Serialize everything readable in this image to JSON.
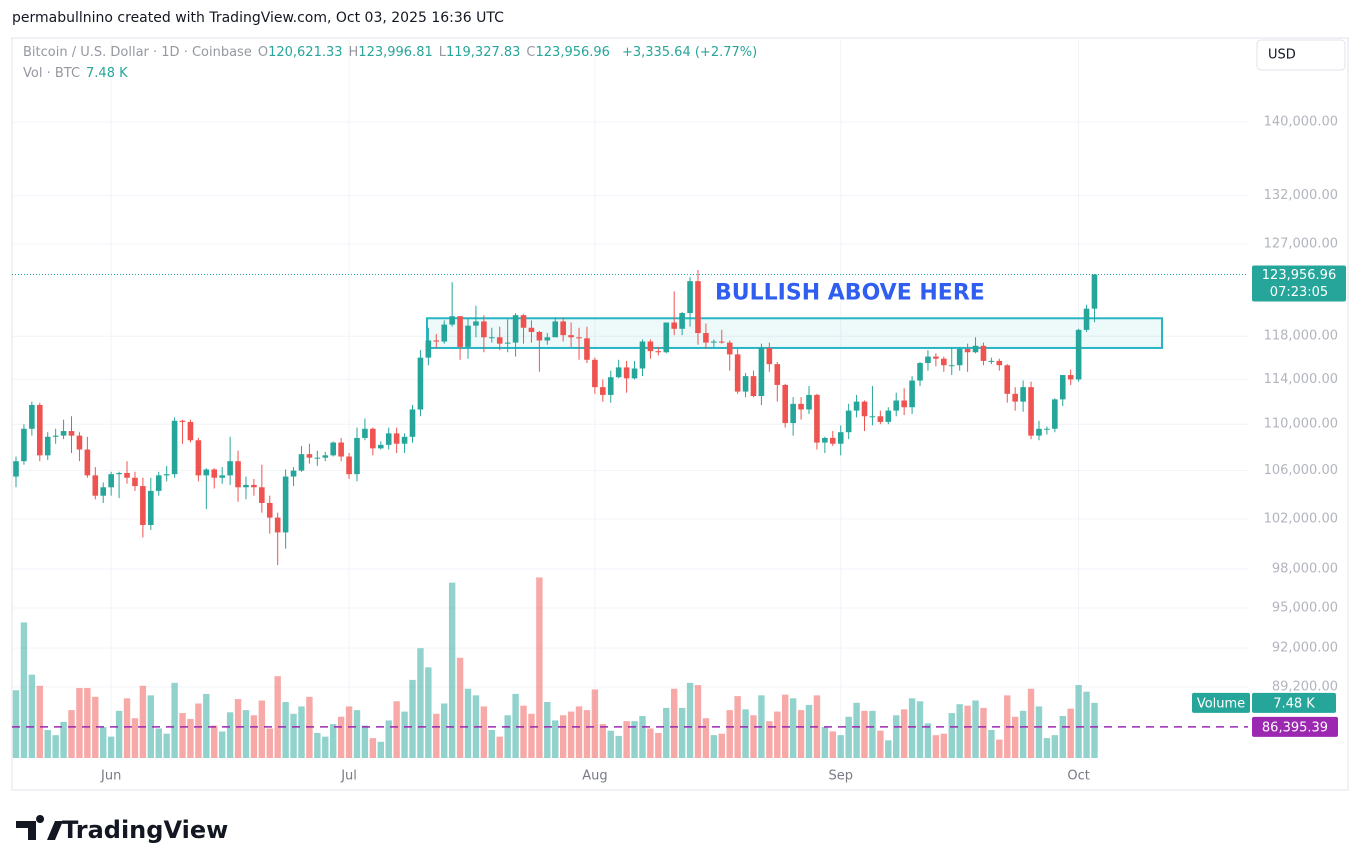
{
  "header": {
    "byline": "permabullnino created with TradingView.com, Oct 03, 2025 16:36 UTC",
    "brand": "TradingView"
  },
  "chart_data": {
    "type": "candlestick",
    "title": "Bitcoin / U.S. Dollar · 1D · Coinbase",
    "ohlc_legend": [
      {
        "key": "O",
        "value": "120,621.33"
      },
      {
        "key": "H",
        "value": "123,996.81"
      },
      {
        "key": "L",
        "value": "119,327.83"
      },
      {
        "key": "C",
        "value": "123,956.96"
      }
    ],
    "change": "+3,335.64 (+2.77%)",
    "volume_legend": {
      "name": "Vol · BTC",
      "value": "7.48 K"
    },
    "volume_name": "Volume",
    "currency": "USD",
    "log_scale": true,
    "grid": true,
    "up_color": "#26a69a",
    "down_color": "#ef5350",
    "ylim": [
      84280,
      149460
    ],
    "yticks": [
      {
        "value": 140000,
        "label": "140,000.00"
      },
      {
        "value": 132000,
        "label": "132,000.00"
      },
      {
        "value": 127000,
        "label": "127,000.00"
      },
      {
        "value": 118000,
        "label": "118,000.00"
      },
      {
        "value": 114000,
        "label": "114,000.00"
      },
      {
        "value": 110000,
        "label": "110,000.00"
      },
      {
        "value": 106000,
        "label": "106,000.00"
      },
      {
        "value": 102000,
        "label": "102,000.00"
      },
      {
        "value": 98000,
        "label": "98,000.00"
      },
      {
        "value": 95000,
        "label": "95,000.00"
      },
      {
        "value": 92000,
        "label": "92,000.00"
      },
      {
        "value": 89200,
        "label": "89,200.00"
      }
    ],
    "xticks": [
      {
        "value": 12,
        "label": "Jun"
      },
      {
        "value": 42,
        "label": "Jul"
      },
      {
        "value": 73,
        "label": "Aug"
      },
      {
        "value": 104,
        "label": "Sep"
      },
      {
        "value": 134,
        "label": "Oct"
      }
    ],
    "last_price": {
      "value": 123956.96,
      "label": "123,956.96",
      "countdown": "07:23:05"
    },
    "price_lines": [
      {
        "value": 86395.39,
        "label": "86,395.39",
        "color": "#9c27b0"
      }
    ],
    "zone": {
      "low": 116900,
      "high": 119700,
      "color": "#26b5c4",
      "text": "BULLISH ABOVE HERE",
      "text_color": "#2f5ef0"
    },
    "volume_lim": [
      0,
      24.7
    ],
    "candles": [
      [
        105500,
        107200,
        104600,
        106800
      ],
      [
        106800,
        110000,
        106500,
        109600
      ],
      [
        109600,
        112000,
        109000,
        111700
      ],
      [
        111700,
        111900,
        106800,
        107300
      ],
      [
        107300,
        109300,
        106900,
        108900
      ],
      [
        108900,
        109600,
        108300,
        109000
      ],
      [
        109000,
        110400,
        108700,
        109400
      ],
      [
        109400,
        110700,
        107500,
        109000
      ],
      [
        109000,
        109300,
        106800,
        107800
      ],
      [
        107800,
        108900,
        105400,
        105600
      ],
      [
        105600,
        106300,
        103600,
        103900
      ],
      [
        103900,
        105000,
        103300,
        104600
      ],
      [
        104600,
        105900,
        103900,
        105700
      ],
      [
        105700,
        105900,
        103700,
        105800
      ],
      [
        105800,
        106800,
        104900,
        105400
      ],
      [
        105400,
        105900,
        104300,
        104700
      ],
      [
        104700,
        105400,
        100500,
        101500
      ],
      [
        101500,
        105400,
        101100,
        104300
      ],
      [
        104300,
        105900,
        103900,
        105600
      ],
      [
        105600,
        106400,
        105100,
        105700
      ],
      [
        105700,
        110600,
        105400,
        110300
      ],
      [
        110300,
        110400,
        108300,
        110200
      ],
      [
        110200,
        110400,
        108400,
        108600
      ],
      [
        108600,
        108800,
        105100,
        105600
      ],
      [
        105600,
        106200,
        102800,
        106100
      ],
      [
        106100,
        106200,
        104500,
        105400
      ],
      [
        105400,
        106300,
        104900,
        105600
      ],
      [
        105600,
        108900,
        104800,
        106800
      ],
      [
        106800,
        107700,
        103400,
        104600
      ],
      [
        104600,
        105500,
        103600,
        104800
      ],
      [
        104800,
        105300,
        103900,
        104600
      ],
      [
        104600,
        106500,
        102500,
        103300
      ],
      [
        103300,
        103900,
        100800,
        102100
      ],
      [
        102100,
        102500,
        98300,
        100900
      ],
      [
        100900,
        106100,
        99600,
        105500
      ],
      [
        105500,
        106300,
        104700,
        106000
      ],
      [
        106000,
        108100,
        105900,
        107400
      ],
      [
        107400,
        108300,
        106600,
        107100
      ],
      [
        107100,
        107700,
        106400,
        107100
      ],
      [
        107100,
        107600,
        106800,
        107300
      ],
      [
        107300,
        108500,
        107200,
        108400
      ],
      [
        108400,
        108800,
        106800,
        107200
      ],
      [
        107200,
        107500,
        105300,
        105700
      ],
      [
        105700,
        109700,
        105100,
        108800
      ],
      [
        108800,
        110500,
        108600,
        109600
      ],
      [
        109600,
        109700,
        107300,
        107900
      ],
      [
        107900,
        108500,
        107800,
        108200
      ],
      [
        108200,
        109700,
        107800,
        109200
      ],
      [
        109200,
        109700,
        107500,
        108300
      ],
      [
        108300,
        109200,
        107500,
        108900
      ],
      [
        108900,
        111700,
        108400,
        111300
      ],
      [
        111300,
        116700,
        110700,
        116000
      ],
      [
        116000,
        118800,
        115300,
        117600
      ],
      [
        117600,
        118200,
        116900,
        117500
      ],
      [
        117500,
        119500,
        117300,
        119100
      ],
      [
        119100,
        123200,
        118900,
        119900
      ],
      [
        119900,
        119900,
        115800,
        117000
      ],
      [
        117000,
        119700,
        115900,
        119000
      ],
      [
        119000,
        120900,
        117900,
        119400
      ],
      [
        119400,
        120000,
        116500,
        117900
      ],
      [
        117900,
        118800,
        117400,
        117900
      ],
      [
        117900,
        118900,
        116700,
        117300
      ],
      [
        117300,
        119600,
        116500,
        117400
      ],
      [
        117400,
        120200,
        116100,
        120000
      ],
      [
        120000,
        120100,
        117300,
        118800
      ],
      [
        118800,
        119500,
        117400,
        118400
      ],
      [
        118400,
        118500,
        114700,
        117600
      ],
      [
        117600,
        118300,
        117200,
        117900
      ],
      [
        117900,
        119800,
        117900,
        119400
      ],
      [
        119400,
        119800,
        117500,
        118100
      ],
      [
        118100,
        119300,
        117000,
        117900
      ],
      [
        117900,
        118800,
        115800,
        117800
      ],
      [
        117800,
        118900,
        115500,
        115800
      ],
      [
        115800,
        116000,
        112700,
        113300
      ],
      [
        113300,
        114000,
        112000,
        112600
      ],
      [
        112600,
        114800,
        111900,
        114200
      ],
      [
        114200,
        115800,
        114100,
        115100
      ],
      [
        115100,
        115700,
        112800,
        114100
      ],
      [
        114100,
        115700,
        114000,
        115000
      ],
      [
        115000,
        117700,
        114300,
        117500
      ],
      [
        117500,
        117700,
        115900,
        116600
      ],
      [
        116600,
        117000,
        116200,
        116500
      ],
      [
        116500,
        119300,
        116400,
        119300
      ],
      [
        119300,
        122300,
        118100,
        118700
      ],
      [
        118700,
        120300,
        118100,
        120200
      ],
      [
        120200,
        123700,
        118900,
        123300
      ],
      [
        123300,
        124400,
        117200,
        118300
      ],
      [
        118300,
        119200,
        116800,
        117400
      ],
      [
        117400,
        117700,
        117000,
        117500
      ],
      [
        117500,
        118600,
        117300,
        117400
      ],
      [
        117400,
        117600,
        114800,
        116300
      ],
      [
        116300,
        116800,
        112700,
        112900
      ],
      [
        112900,
        114600,
        112400,
        114300
      ],
      [
        114300,
        114800,
        112400,
        112500
      ],
      [
        112500,
        117300,
        111700,
        116900
      ],
      [
        116900,
        117400,
        114700,
        115400
      ],
      [
        115400,
        115600,
        112000,
        113500
      ],
      [
        113500,
        113600,
        109700,
        110100
      ],
      [
        110100,
        112400,
        109000,
        111800
      ],
      [
        111800,
        112400,
        110400,
        111300
      ],
      [
        111300,
        113400,
        110900,
        112600
      ],
      [
        112600,
        112700,
        107800,
        108400
      ],
      [
        108400,
        108900,
        107500,
        108800
      ],
      [
        108800,
        109400,
        108100,
        108300
      ],
      [
        108300,
        109900,
        107300,
        109300
      ],
      [
        109300,
        111800,
        108700,
        111200
      ],
      [
        111200,
        112600,
        110600,
        112000
      ],
      [
        112000,
        112100,
        109400,
        110700
      ],
      [
        110700,
        113400,
        109900,
        110700
      ],
      [
        110700,
        111200,
        110000,
        110200
      ],
      [
        110200,
        111500,
        110000,
        111200
      ],
      [
        111200,
        112800,
        110700,
        112100
      ],
      [
        112100,
        113200,
        110800,
        111500
      ],
      [
        111500,
        114300,
        110900,
        113900
      ],
      [
        113900,
        115600,
        113400,
        115500
      ],
      [
        115500,
        116700,
        114800,
        116100
      ],
      [
        116100,
        116400,
        115200,
        115900
      ],
      [
        115900,
        116100,
        114700,
        115300
      ],
      [
        115300,
        116900,
        114400,
        115300
      ],
      [
        115300,
        117000,
        114800,
        116800
      ],
      [
        116800,
        117300,
        114700,
        116500
      ],
      [
        116500,
        117900,
        116400,
        117100
      ],
      [
        117100,
        117400,
        115300,
        115700
      ],
      [
        115700,
        116000,
        115400,
        115700
      ],
      [
        115700,
        115900,
        114800,
        115300
      ],
      [
        115300,
        115400,
        111900,
        112700
      ],
      [
        112700,
        113300,
        111200,
        112000
      ],
      [
        112000,
        113900,
        111100,
        113300
      ],
      [
        113300,
        113800,
        108700,
        109000
      ],
      [
        109000,
        110300,
        108600,
        109600
      ],
      [
        109600,
        109800,
        109100,
        109600
      ],
      [
        109600,
        112300,
        109300,
        112200
      ],
      [
        112200,
        114400,
        111600,
        114400
      ],
      [
        114400,
        114900,
        113500,
        114000
      ],
      [
        114000,
        118700,
        113800,
        118600
      ],
      [
        118600,
        121000,
        118400,
        120621.33
      ],
      [
        120621.33,
        123996.81,
        119327.83,
        123956.96
      ]
    ],
    "volume": [
      9.2,
      18.4,
      11.3,
      9.8,
      3.8,
      3.1,
      4.9,
      6.5,
      9.5,
      9.5,
      8.3,
      4.2,
      2.9,
      6.4,
      8.1,
      5.4,
      9.8,
      8.5,
      4.0,
      3.3,
      10.2,
      6.1,
      5.3,
      7.4,
      8.7,
      4.4,
      3.6,
      6.2,
      8.0,
      6.5,
      5.8,
      7.8,
      4.0,
      11.1,
      7.6,
      6.0,
      7.0,
      8.3,
      3.4,
      2.9,
      4.6,
      5.6,
      7.0,
      6.5,
      4.4,
      2.7,
      2.2,
      5.1,
      7.7,
      6.3,
      10.6,
      14.9,
      12.3,
      6.0,
      7.4,
      23.8,
      13.6,
      9.4,
      8.5,
      7.0,
      3.8,
      2.9,
      5.8,
      8.7,
      7.1,
      6.0,
      24.5,
      7.6,
      5.1,
      5.8,
      6.3,
      7.0,
      6.5,
      9.3,
      4.6,
      3.7,
      3.0,
      5.0,
      5.0,
      5.7,
      4.0,
      3.4,
      6.8,
      9.4,
      6.8,
      10.2,
      9.9,
      5.4,
      3.1,
      3.3,
      6.5,
      8.4,
      6.6,
      5.8,
      8.5,
      5.0,
      6.3,
      8.6,
      8.1,
      6.5,
      7.2,
      8.5,
      4.2,
      3.6,
      3.1,
      5.6,
      7.5,
      6.4,
      6.4,
      3.7,
      2.4,
      5.8,
      6.6,
      8.1,
      7.7,
      4.7,
      3.1,
      3.3,
      6.1,
      7.3,
      7.1,
      7.8,
      6.8,
      3.8,
      2.5,
      8.5,
      5.6,
      6.4,
      9.4,
      7.0,
      2.7,
      3.1,
      5.7,
      6.7,
      9.9,
      9.0,
      7.48
    ]
  }
}
